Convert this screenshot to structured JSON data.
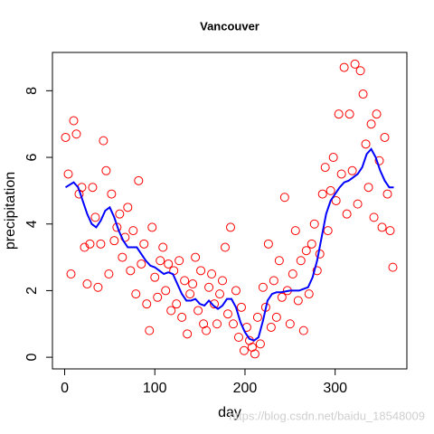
{
  "chart_data": {
    "type": "scatter",
    "title": "Vancouver",
    "xlabel": "day",
    "ylabel": "precipitation",
    "watermark": "https://blog.csdn.net/baidu_18548009",
    "xlim": [
      -13.56,
      379.56
    ],
    "ylim": [
      -0.35,
      9.15
    ],
    "xticks": [
      0,
      100,
      200,
      300
    ],
    "yticks": [
      0,
      2,
      4,
      6,
      8
    ],
    "series": [
      {
        "mode": "markers",
        "color": "#ff0000",
        "x": [
          1,
          4,
          7,
          10,
          13,
          16,
          19,
          22,
          25,
          28,
          31,
          34,
          37,
          40,
          43,
          46,
          49,
          52,
          55,
          58,
          61,
          64,
          67,
          70,
          73,
          76,
          79,
          82,
          85,
          88,
          91,
          94,
          97,
          100,
          103,
          106,
          109,
          112,
          115,
          118,
          121,
          124,
          127,
          130,
          133,
          136,
          139,
          142,
          145,
          148,
          151,
          154,
          157,
          160,
          163,
          166,
          169,
          172,
          175,
          178,
          181,
          184,
          187,
          190,
          193,
          196,
          199,
          202,
          205,
          208,
          211,
          214,
          217,
          220,
          223,
          226,
          229,
          232,
          235,
          238,
          241,
          244,
          247,
          250,
          253,
          256,
          259,
          262,
          265,
          268,
          271,
          274,
          277,
          280,
          283,
          286,
          289,
          292,
          295,
          298,
          301,
          304,
          307,
          310,
          313,
          316,
          319,
          322,
          325,
          328,
          331,
          334,
          337,
          340,
          343,
          346,
          349,
          352,
          355,
          358,
          361,
          364
        ],
        "values": [
          6.6,
          5.5,
          2.5,
          7.1,
          6.7,
          4.9,
          5.1,
          3.3,
          2.2,
          3.4,
          5.1,
          4.2,
          2.1,
          3.4,
          6.5,
          5.6,
          2.5,
          4.9,
          3.5,
          3.9,
          4.3,
          3.0,
          3.6,
          4.5,
          2.6,
          3.8,
          1.9,
          5.3,
          2.8,
          3.4,
          1.6,
          0.8,
          3.9,
          2.4,
          1.8,
          2.9,
          3.3,
          2.0,
          2.8,
          1.4,
          2.6,
          1.6,
          2.9,
          1.2,
          2.3,
          0.7,
          1.9,
          2.2,
          3.0,
          1.4,
          2.6,
          1.0,
          0.8,
          2.1,
          2.5,
          1.6,
          1.0,
          1.9,
          2.3,
          3.3,
          1.3,
          3.9,
          1.0,
          2.0,
          0.6,
          1.5,
          0.2,
          0.9,
          0.5,
          0.3,
          0.1,
          1.2,
          0.4,
          2.1,
          1.5,
          3.4,
          0.9,
          2.3,
          1.2,
          2.9,
          1.8,
          4.8,
          2.0,
          1.0,
          2.5,
          3.8,
          1.7,
          2.9,
          0.8,
          3.2,
          1.9,
          3.4,
          4.0,
          2.6,
          3.1,
          4.9,
          5.7,
          3.8,
          5.0,
          6.0,
          4.7,
          7.3,
          5.5,
          8.7,
          4.3,
          7.3,
          5.6,
          8.8,
          4.6,
          8.6,
          7.9,
          6.4,
          5.1,
          7.0,
          4.2,
          7.3,
          5.9,
          3.9,
          6.6,
          4.9,
          3.8,
          2.7
        ]
      },
      {
        "mode": "line",
        "color": "#0000ff",
        "x": [
          1,
          10,
          15,
          20,
          25,
          30,
          35,
          40,
          45,
          50,
          55,
          60,
          65,
          70,
          75,
          80,
          85,
          90,
          95,
          100,
          105,
          110,
          115,
          120,
          125,
          130,
          135,
          140,
          145,
          150,
          155,
          160,
          165,
          170,
          175,
          180,
          185,
          190,
          195,
          200,
          205,
          210,
          215,
          220,
          225,
          230,
          235,
          240,
          250,
          260,
          270,
          275,
          280,
          285,
          290,
          295,
          300,
          305,
          310,
          315,
          320,
          325,
          330,
          335,
          340,
          345,
          350,
          355,
          360,
          365
        ],
        "values": [
          5.1,
          5.25,
          5.1,
          4.7,
          4.3,
          4.0,
          3.9,
          4.1,
          4.4,
          4.5,
          4.2,
          3.8,
          3.5,
          3.3,
          3.3,
          3.3,
          3.1,
          2.9,
          2.75,
          2.7,
          2.6,
          2.5,
          2.55,
          2.5,
          2.2,
          1.9,
          1.7,
          1.7,
          1.75,
          1.6,
          1.55,
          1.7,
          1.55,
          1.45,
          1.55,
          1.75,
          1.75,
          1.5,
          1.05,
          0.75,
          0.55,
          0.5,
          0.6,
          1.1,
          1.7,
          1.9,
          1.95,
          1.95,
          2.0,
          2.0,
          2.1,
          2.4,
          2.9,
          3.6,
          4.3,
          4.7,
          4.9,
          5.1,
          5.25,
          5.3,
          5.4,
          5.5,
          5.7,
          6.1,
          6.25,
          6.0,
          5.6,
          5.3,
          5.1,
          5.1
        ]
      }
    ]
  }
}
